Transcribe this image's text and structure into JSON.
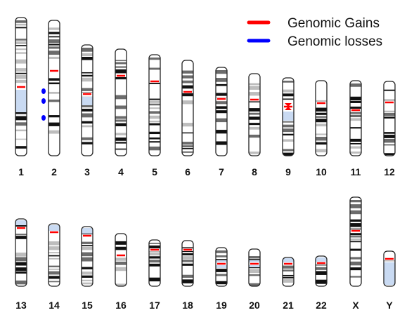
{
  "legend": {
    "gains_label": "Genomic Gains",
    "losses_label": "Genomic losses",
    "gains_color": "#ff0000",
    "losses_color": "#0000ff"
  },
  "colors": {
    "band_dark": "#111111",
    "band_mid": "#6b6b6b",
    "band_light": "#bdbdbd",
    "outline": "#222222",
    "heterochromatin": "#c9daf2",
    "background": "#ffffff"
  },
  "chromosomes": [
    {
      "label": "1",
      "centromere": "red",
      "losses": 3
    },
    {
      "label": "2",
      "centromere": "red",
      "losses": 0
    },
    {
      "label": "3",
      "centromere": "red",
      "losses": 0
    },
    {
      "label": "4",
      "centromere": "red",
      "losses": 0
    },
    {
      "label": "5",
      "centromere": "red",
      "losses": 0
    },
    {
      "label": "6",
      "centromere": "red",
      "losses": 0
    },
    {
      "label": "7",
      "centromere": "red",
      "losses": 0
    },
    {
      "label": "8",
      "centromere": "red",
      "losses": 0
    },
    {
      "label": "9",
      "centromere": "red",
      "losses": 0
    },
    {
      "label": "10",
      "centromere": "red",
      "losses": 0
    },
    {
      "label": "11",
      "centromere": "red",
      "losses": 0
    },
    {
      "label": "12",
      "centromere": "red",
      "losses": 0
    },
    {
      "label": "13",
      "centromere": "red",
      "losses": 0
    },
    {
      "label": "14",
      "centromere": "red",
      "losses": 0
    },
    {
      "label": "15",
      "centromere": "red",
      "losses": 0
    },
    {
      "label": "16",
      "centromere": "red",
      "losses": 0
    },
    {
      "label": "17",
      "centromere": "red",
      "losses": 0
    },
    {
      "label": "18",
      "centromere": "red",
      "losses": 0
    },
    {
      "label": "19",
      "centromere": "red",
      "losses": 0
    },
    {
      "label": "20",
      "centromere": "red",
      "losses": 0
    },
    {
      "label": "21",
      "centromere": "red",
      "losses": 0
    },
    {
      "label": "22",
      "centromere": "red",
      "losses": 0
    },
    {
      "label": "X",
      "centromere": "red",
      "losses": 0
    },
    {
      "label": "Y",
      "centromere": "red",
      "losses": 0
    }
  ]
}
